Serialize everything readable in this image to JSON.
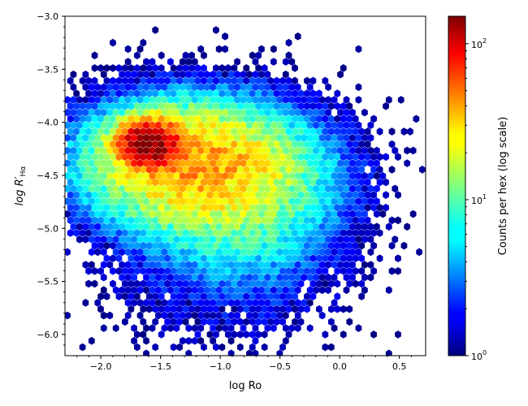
{
  "chart_data": {
    "type": "hexbin",
    "xlabel": "log Ro",
    "ylabel_main": "log R′",
    "ylabel_sub": "Hα",
    "xlim": [
      -2.3,
      0.72
    ],
    "ylim": [
      -6.2,
      -3.0
    ],
    "xticks": [
      -2.0,
      -1.5,
      -1.0,
      -0.5,
      0.0,
      0.5
    ],
    "xtick_labels": [
      "−2.0",
      "−1.5",
      "−1.0",
      "−0.5",
      "0.0",
      "0.5"
    ],
    "yticks": [
      -6.0,
      -5.5,
      -5.0,
      -4.5,
      -4.0,
      -3.5,
      -3.0
    ],
    "ytick_labels": [
      "−6.0",
      "−5.5",
      "−5.0",
      "−4.5",
      "−4.0",
      "−3.5",
      "−3.0"
    ],
    "colorbar": {
      "label": "Counts per hex (log scale)",
      "scale": "log",
      "range": [
        1,
        150
      ],
      "colormap": "jet",
      "ticks": [
        {
          "value": 1,
          "base": "10",
          "exp": "0"
        },
        {
          "value": 10,
          "base": "10",
          "exp": "1"
        },
        {
          "value": 100,
          "base": "10",
          "exp": "2"
        }
      ]
    },
    "density_components": [
      {
        "x": -1.6,
        "y": -4.2,
        "sx": 0.14,
        "sy": 0.12,
        "peak": 150
      },
      {
        "x": -1.3,
        "y": -4.35,
        "sx": 0.5,
        "sy": 0.32,
        "peak": 28
      },
      {
        "x": -1.0,
        "y": -4.55,
        "sx": 0.55,
        "sy": 0.4,
        "peak": 12
      },
      {
        "x": -0.7,
        "y": -4.8,
        "sx": 0.45,
        "sy": 0.5,
        "peak": 4
      },
      {
        "x": -1.0,
        "y": -5.4,
        "sx": 0.6,
        "sy": 0.45,
        "peak": 1.6
      }
    ]
  }
}
